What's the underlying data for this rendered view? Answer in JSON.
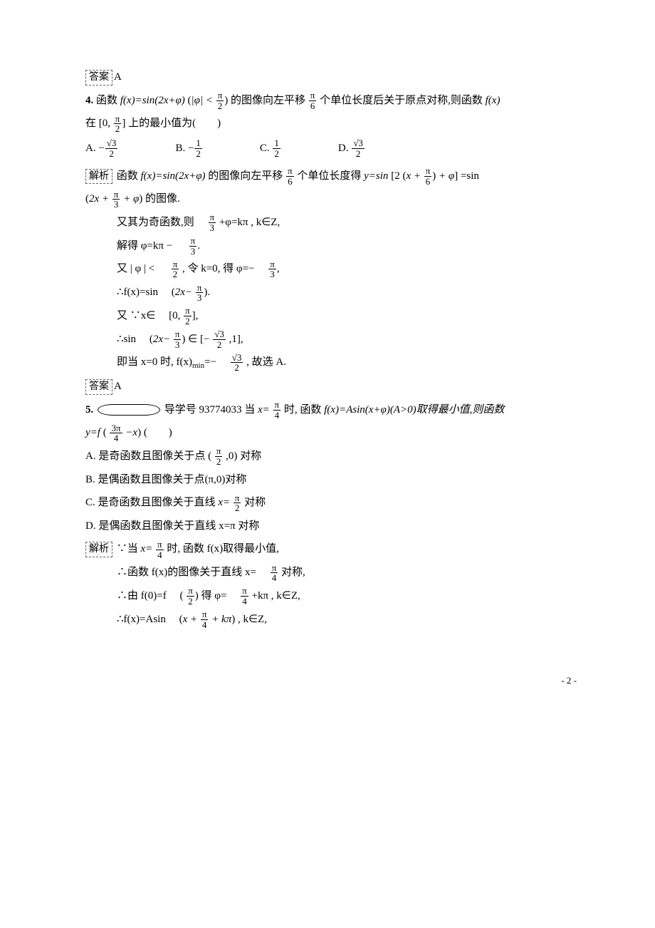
{
  "answerLabel": "答案",
  "explLabel": "解析",
  "answerA": "A",
  "q4": {
    "num": "4.",
    "stem_a": "函数 ",
    "fx_eq": "f(x)=sin(2x+φ)",
    "abs_phi_lt": "|φ| <",
    "pi2n": "π",
    "pi2d": "2",
    "shift_a": "的图像向左平移",
    "shift_frac_n": "π",
    "shift_frac_d": "6",
    "shift_b": "个单位长度后关于原点对称,则函数 ",
    "fx2": "f(x)",
    "on_a": "在",
    "zero": "0,",
    "half_n": "π",
    "half_d": "2",
    "tail": "上的最小值为(　　)",
    "optA_lead": "A. −",
    "optA_n": "√3",
    "optA_d": "2",
    "optB_lead": "B. −",
    "optB_n": "1",
    "optB_d": "2",
    "optC_lead": "C. ",
    "optC_n": "1",
    "optC_d": "2",
    "optD_lead": "D. ",
    "optD_n": "√3",
    "optD_d": "2",
    "ex1a": "函数 ",
    "ex1_fx": "f(x)=sin(2x+φ)",
    "ex1b": "的图像向左平移",
    "ex1_n": "π",
    "ex1_d": "6",
    "ex1c": "个单位长度得 ",
    "ex1_y": "y=sin",
    "inside_2": "2",
    "inside_x": "x +",
    "inside_n": "π",
    "inside_d": "6",
    "inside_phi": "+ φ",
    "ex1_eqsin": "=sin",
    "line2_2x": "2x +",
    "line2_n": "π",
    "line2_d": "3",
    "line2_phi": "+ φ",
    "line2_tail": "的图像.",
    "odd_a": "又其为奇函数,则　",
    "odd_n": "π",
    "odd_d": "3",
    "odd_b": "+φ=kπ , k∈Z,",
    "solve_a": "解得 φ=kπ − 　",
    "solve_n": "π",
    "solve_d": "3",
    "solve_dot": ".",
    "again_a": "又 | φ | < 　",
    "again_n": "π",
    "again_d": "2",
    "again_b": ", 令 k=0, 得 φ=−　",
    "again2_n": "π",
    "again2_d": "3",
    "again_c": ",",
    "so_fx_a": "∴f(x)=sin　",
    "so_2x": "2x−",
    "so_n": "π",
    "so_d": "3",
    "so_dot": ".",
    "xin_a": "又 ∵x∈　",
    "xin_lb0": "0,",
    "xin_n": "π",
    "xin_d": "2",
    "xin_c": ",",
    "sin_a": "∴sin　",
    "sin_2x": "2x−",
    "sin_n1": "π",
    "sin_d1": "3",
    "sin_in": " ∈ ",
    "sin_l_n": "√3",
    "sin_l_d": "2",
    "sin_r": ",1",
    "sin_c": ",",
    "min_a": "即当 x=0 时, f(x)",
    "min_sub": "min",
    "min_eq": "=−　",
    "min_n": "√3",
    "min_d": "2",
    "min_b": ", 故选 A."
  },
  "q5": {
    "num": "5.",
    "dxh": "导学号 93774033 当 ",
    "xeq": "x=",
    "pi4n": "π",
    "pi4d": "4",
    "when": "时, 函数 ",
    "fx": "f(x)=Asin(x+φ)(A>0)取得最小值,则函数",
    "yf_a": "y=f",
    "yf_n": "3π",
    "yf_d": "4",
    "yf_mx": "−x",
    "paren": "(　　)",
    "A1": "A. 是奇函数且图像关于点",
    "A2_n": "π",
    "A2_d": "2",
    "A2_z": ",0",
    "A3": "对称",
    "B": "B. 是偶函数且图像关于点(π,0)对称",
    "C1": "C. 是奇函数且图像关于直线 ",
    "C_x": "x=",
    "C_n": "π",
    "C_d": "2",
    "C2": "对称",
    "D": "D. 是偶函数且图像关于直线 x=π 对称",
    "ex_a": "∵当 ",
    "ex_xn": "π",
    "ex_xd": "4",
    "ex_b": "时, 函数 f(x)取得最小值,",
    "sym_a": "∴函数 f(x)的图像关于直线 x=　",
    "sym_n": "π",
    "sym_d": "4",
    "sym_b": "对称,",
    "f0_a": "∴由 f(0)=f　",
    "f0_n": "π",
    "f0_d": "2",
    "f0_b": "得 φ=　",
    "f0_2n": "π",
    "f0_2d": "4",
    "f0_c": "+kπ , k∈Z,",
    "fxA_a": "∴f(x)=Asin　",
    "fxA_x": "x +",
    "fxA_n": "π",
    "fxA_d": "4",
    "fxA_k": "+ kπ",
    "fxA_b": ", k∈Z,"
  },
  "pageFoot": "- 2 -"
}
